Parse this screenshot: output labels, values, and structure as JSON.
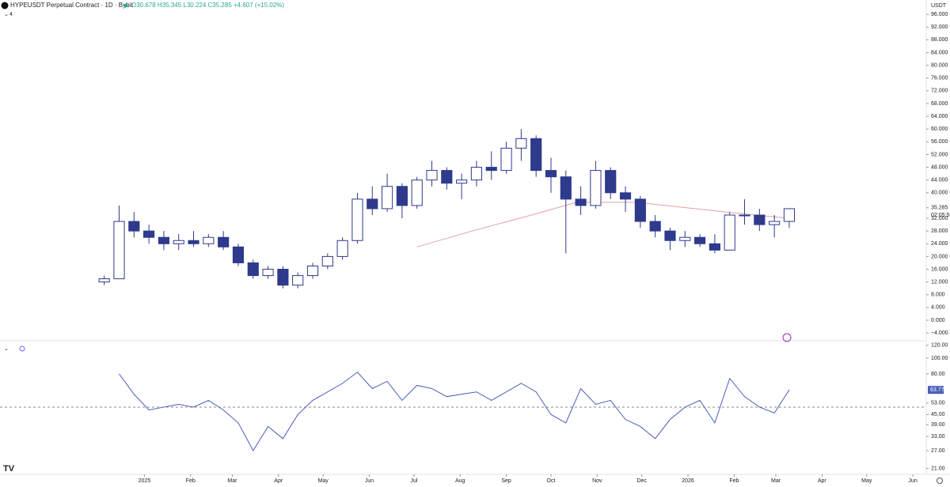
{
  "header": {
    "title": "HYPEUSDT Perpetual Contract · 1D · Bybit",
    "ohlc": "O30.678 H35.345 L30.224 C35.285 +4.607 (+15.02%)",
    "indicator_count": "4",
    "currency": "USDT"
  },
  "chart_data": [
    {
      "type": "candlestick",
      "x": [
        -27,
        -17,
        -7,
        3,
        13,
        23,
        33,
        43,
        53,
        63,
        73,
        83,
        93,
        103,
        113,
        123,
        133,
        143,
        153,
        163,
        173,
        183,
        193,
        203,
        213,
        223,
        233,
        243,
        253,
        263,
        273,
        283,
        293,
        303,
        313,
        323,
        333,
        343,
        353,
        363,
        373,
        383,
        393,
        403,
        413,
        423,
        433
      ],
      "open": [
        12,
        13,
        31,
        28,
        26,
        24,
        25,
        24,
        26,
        23,
        18,
        14,
        16,
        11,
        14,
        17,
        20,
        25,
        38,
        35,
        42,
        36,
        44,
        47,
        43,
        44,
        48,
        47,
        54,
        57,
        47,
        45,
        38,
        36,
        47,
        40,
        38,
        31,
        28,
        25,
        26,
        24,
        22,
        33,
        33,
        30,
        31
      ],
      "high": [
        14,
        36,
        34,
        30,
        28,
        27,
        28,
        27,
        28,
        24,
        19,
        17,
        17,
        15,
        18,
        21,
        26,
        40,
        42,
        46,
        43,
        45,
        50,
        48,
        46,
        50,
        53,
        56,
        60,
        58,
        51,
        47,
        42,
        50,
        48,
        42,
        39,
        33,
        29,
        28,
        27,
        27,
        34,
        38,
        35,
        33,
        35
      ],
      "low": [
        11,
        13,
        26,
        24,
        22,
        22,
        23,
        23,
        22,
        17,
        13,
        13,
        10,
        10,
        13,
        16,
        19,
        24,
        33,
        34,
        32,
        35,
        42,
        41,
        38,
        42,
        44,
        46,
        50,
        45,
        40,
        21,
        33,
        35,
        38,
        34,
        29,
        26,
        22,
        23,
        23,
        21,
        22,
        30,
        28,
        26,
        29
      ],
      "close": [
        13,
        31,
        28,
        26,
        24,
        25,
        24,
        26,
        23,
        18,
        14,
        16,
        11,
        14,
        17,
        20,
        25,
        38,
        35,
        42,
        36,
        44,
        47,
        43,
        44,
        48,
        47,
        54,
        57,
        47,
        45,
        38,
        36,
        47,
        40,
        38,
        31,
        28,
        25,
        26,
        24,
        22,
        33,
        33,
        30,
        31,
        35
      ],
      "up_color": "#ffffff",
      "down_color": "#2e3a8c",
      "wick_color": "#2e3a8c",
      "overlays": [
        {
          "color": "#e3a0a8",
          "x": [
            183,
            220,
            260,
            290,
            330,
            370,
            410,
            433
          ],
          "values": [
            23,
            28,
            33,
            37,
            37,
            35,
            33,
            32
          ]
        }
      ],
      "xlim": [
        -97,
        525
      ],
      "ylim": [
        -6.2,
        100.5
      ],
      "yticks": [
        {
          "value": 96,
          "label": "96.000"
        },
        {
          "value": 92,
          "label": "92.000"
        },
        {
          "value": 88,
          "label": "88.000"
        },
        {
          "value": 84,
          "label": "84.000"
        },
        {
          "value": 80,
          "label": "80.000"
        },
        {
          "value": 76,
          "label": "76.000"
        },
        {
          "value": 72,
          "label": "72.000"
        },
        {
          "value": 68,
          "label": "68.000"
        },
        {
          "value": 64,
          "label": "64.000"
        },
        {
          "value": 60,
          "label": "60.000"
        },
        {
          "value": 56,
          "label": "56.000"
        },
        {
          "value": 52,
          "label": "52.000"
        },
        {
          "value": 48,
          "label": "48.000"
        },
        {
          "value": 44,
          "label": "44.000"
        },
        {
          "value": 40,
          "label": "40.000"
        },
        {
          "value": 35.285,
          "label": "35.285"
        },
        {
          "value": 32,
          "label": "32.000"
        },
        {
          "value": 28,
          "label": "28.000"
        },
        {
          "value": 24,
          "label": "24.000"
        },
        {
          "value": 20,
          "label": "20.000"
        },
        {
          "value": 16,
          "label": "16.000"
        },
        {
          "value": 12,
          "label": "12.000"
        },
        {
          "value": 8,
          "label": "8.000"
        },
        {
          "value": 4,
          "label": "4.000"
        },
        {
          "value": 0,
          "label": "0.000"
        },
        {
          "value": -4,
          "label": "−4.000"
        }
      ],
      "countdown": "02:05:52",
      "xticks": [
        {
          "value": 0,
          "label": "2025"
        },
        {
          "value": 31,
          "label": "Feb"
        },
        {
          "value": 59,
          "label": "Mar"
        },
        {
          "value": 90,
          "label": "Apr"
        },
        {
          "value": 120,
          "label": "May"
        },
        {
          "value": 151,
          "label": "Jun"
        },
        {
          "value": 181,
          "label": "Jul"
        },
        {
          "value": 212,
          "label": "Aug"
        },
        {
          "value": 243,
          "label": "Sep"
        },
        {
          "value": 273,
          "label": "Oct"
        },
        {
          "value": 304,
          "label": "Nov"
        },
        {
          "value": 334,
          "label": "Dec"
        },
        {
          "value": 365,
          "label": "2026"
        },
        {
          "value": 396,
          "label": "Feb"
        },
        {
          "value": 424,
          "label": "Mar"
        },
        {
          "value": 455,
          "label": "Apr"
        },
        {
          "value": 485,
          "label": "May"
        },
        {
          "value": 516,
          "label": "Jun"
        }
      ]
    },
    {
      "type": "line",
      "log_scale": true,
      "x": [
        -27,
        -17,
        -7,
        3,
        13,
        23,
        33,
        43,
        53,
        63,
        73,
        83,
        93,
        103,
        113,
        123,
        133,
        143,
        153,
        163,
        173,
        183,
        193,
        203,
        213,
        223,
        233,
        243,
        253,
        263,
        273,
        283,
        293,
        303,
        313,
        323,
        333,
        343,
        353,
        363,
        373,
        383,
        393,
        403,
        413,
        423,
        433
      ],
      "values": [
        null,
        80,
        60,
        48,
        50,
        52,
        50,
        55,
        48,
        40,
        27,
        38,
        32,
        45,
        55,
        62,
        70,
        82,
        65,
        72,
        55,
        68,
        65,
        58,
        60,
        62,
        55,
        62,
        70,
        62,
        45,
        40,
        65,
        52,
        55,
        42,
        38,
        32,
        42,
        50,
        55,
        40,
        75,
        58,
        50,
        46,
        63.77
      ],
      "color": "#4a5fb8",
      "last_value": 63.77,
      "midline": 50,
      "xlim": [
        -97,
        525
      ],
      "ylim": [
        19.3,
        126.5
      ],
      "yticks": [
        {
          "value": 120,
          "label": "120.00"
        },
        {
          "value": 100,
          "label": "100.00"
        },
        {
          "value": 80,
          "label": "80.00"
        },
        {
          "value": 53,
          "label": "53.00"
        },
        {
          "value": 45,
          "label": "45.00"
        },
        {
          "value": 39,
          "label": "39.00"
        },
        {
          "value": 33,
          "label": "33.00"
        },
        {
          "value": 27,
          "label": "27.00"
        },
        {
          "value": 21,
          "label": "21.00"
        }
      ]
    }
  ]
}
